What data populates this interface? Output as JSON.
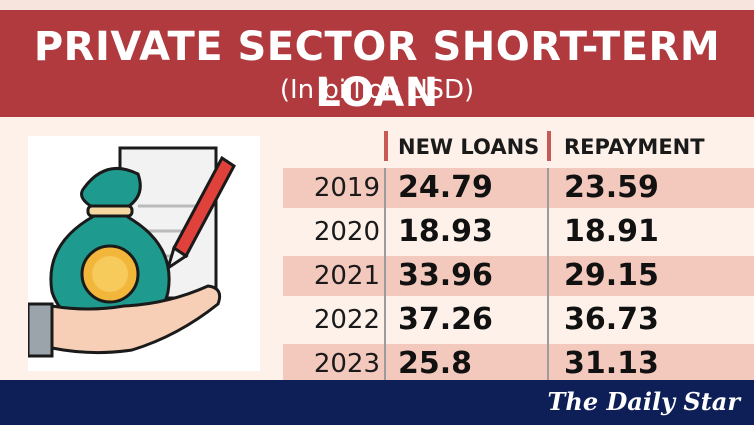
{
  "colors": {
    "title_band": "#b03a3d",
    "row_highlight": "#f4c9bd",
    "background": "#fdf1ea",
    "footer": "#0e1e57",
    "header_accent": "#c85a55"
  },
  "icons": [
    "money-bag-icon",
    "hand-icon",
    "document-icon",
    "pen-icon"
  ],
  "footer": {
    "logo_text": "The Daily Star"
  },
  "chart_data": {
    "type": "table",
    "title": "PRIVATE SECTOR SHORT-TERM LOAN",
    "subtitle": "(In billion USD)",
    "columns": [
      "NEW LOANS",
      "REPAYMENT"
    ],
    "rows": [
      {
        "year": "2019",
        "new_loans": "24.79",
        "repayment": "23.59"
      },
      {
        "year": "2020",
        "new_loans": "18.93",
        "repayment": "18.91"
      },
      {
        "year": "2021",
        "new_loans": "33.96",
        "repayment": "29.15"
      },
      {
        "year": "2022",
        "new_loans": "37.26",
        "repayment": "36.73"
      },
      {
        "year": "2023",
        "new_loans": "25.8",
        "repayment": "31.13"
      }
    ]
  }
}
